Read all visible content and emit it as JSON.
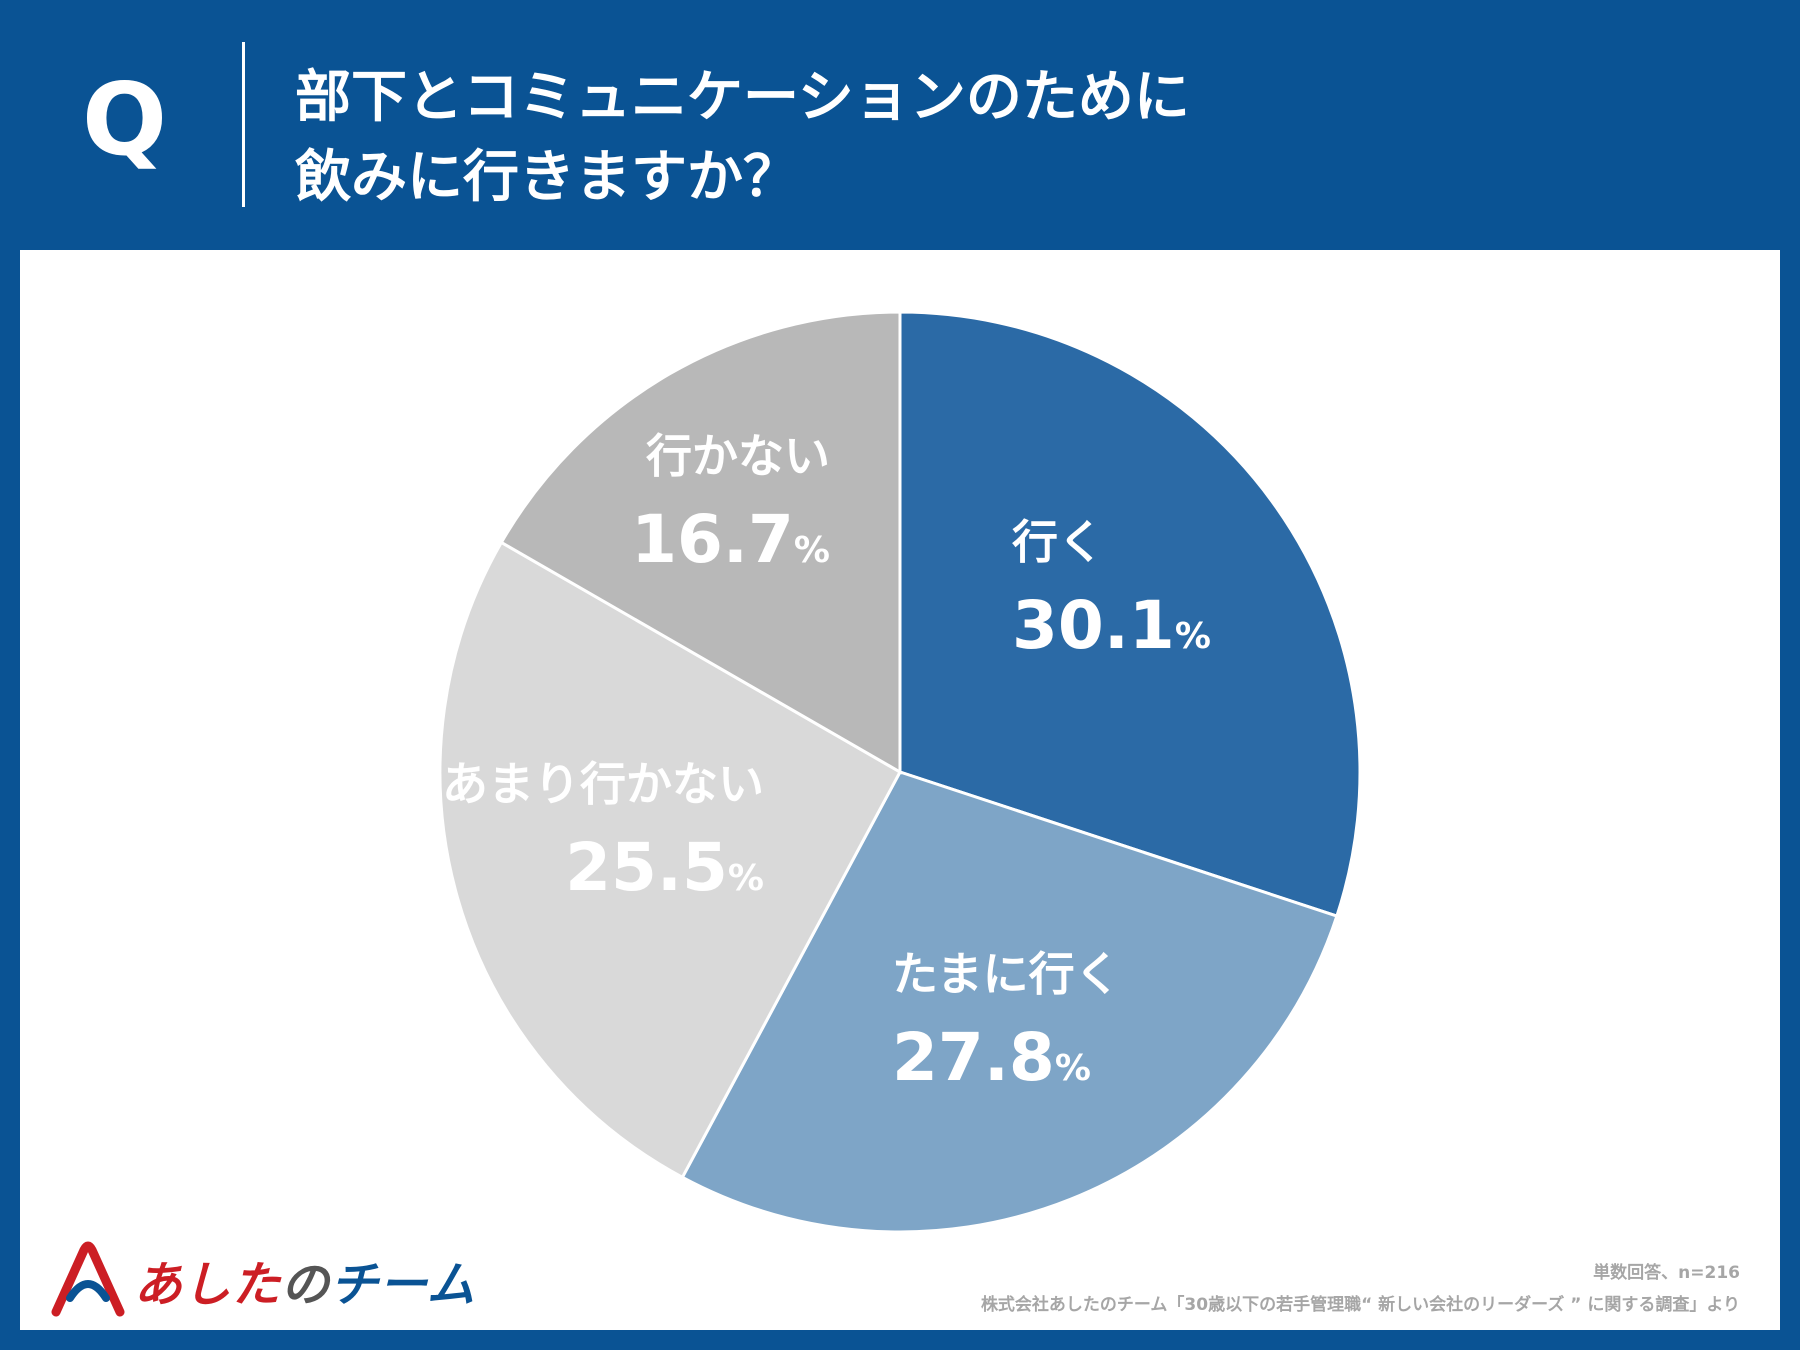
{
  "header": {
    "q_label": "Q",
    "question_line1": "部下とコミュニケーションのために",
    "question_line2": "飲みに行きますか？"
  },
  "chart_data": {
    "type": "pie",
    "title": "部下とコミュニケーションのために飲みに行きますか？",
    "unit": "%",
    "categories": [
      "行く",
      "たまに行く",
      "あまり行かない",
      "行かない"
    ],
    "values": [
      30.1,
      27.8,
      25.5,
      16.7
    ],
    "value_labels": [
      "30.1",
      "27.8",
      "25.5",
      "16.7"
    ],
    "colors": [
      "#2b6aa6",
      "#7ea5c7",
      "#d9d9d9",
      "#b8b8b8"
    ],
    "start_angle": "12 o'clock",
    "direction": "clockwise"
  },
  "footer": {
    "respondents": "単数回答、n=216",
    "source": "株式会社あしたのチーム「30歳以下の若手管理職“ 新しい会社のリーダーズ ” に関する調査」より"
  },
  "logo": {
    "part1": "あした",
    "part2": "の",
    "part3": "チーム",
    "colors": [
      "#cc1e24",
      "#0a5394"
    ]
  }
}
